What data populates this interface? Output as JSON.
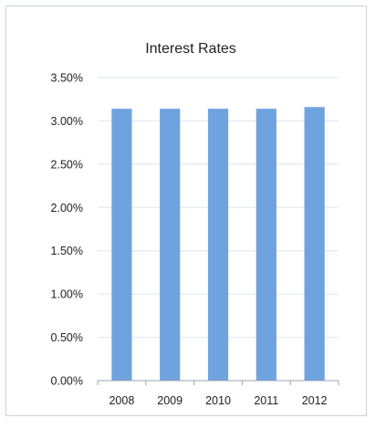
{
  "chart_data": {
    "type": "bar",
    "title": "Interest Rates",
    "xlabel": "",
    "ylabel": "",
    "categories": [
      "2008",
      "2009",
      "2010",
      "2011",
      "2012"
    ],
    "values": [
      3.14,
      3.14,
      3.14,
      3.14,
      3.16
    ],
    "ylim": [
      0,
      3.5
    ],
    "yticks": [
      "0.00%",
      "0.50%",
      "1.00%",
      "1.50%",
      "2.00%",
      "2.50%",
      "3.00%",
      "3.50%"
    ],
    "ytick_values": [
      0,
      0.5,
      1.0,
      1.5,
      2.0,
      2.5,
      3.0,
      3.5
    ],
    "grid": true,
    "legend": "none",
    "bar_color": "#6fa3df",
    "grid_color": "#e8edf2",
    "axis_color": "#9aa5b0"
  }
}
